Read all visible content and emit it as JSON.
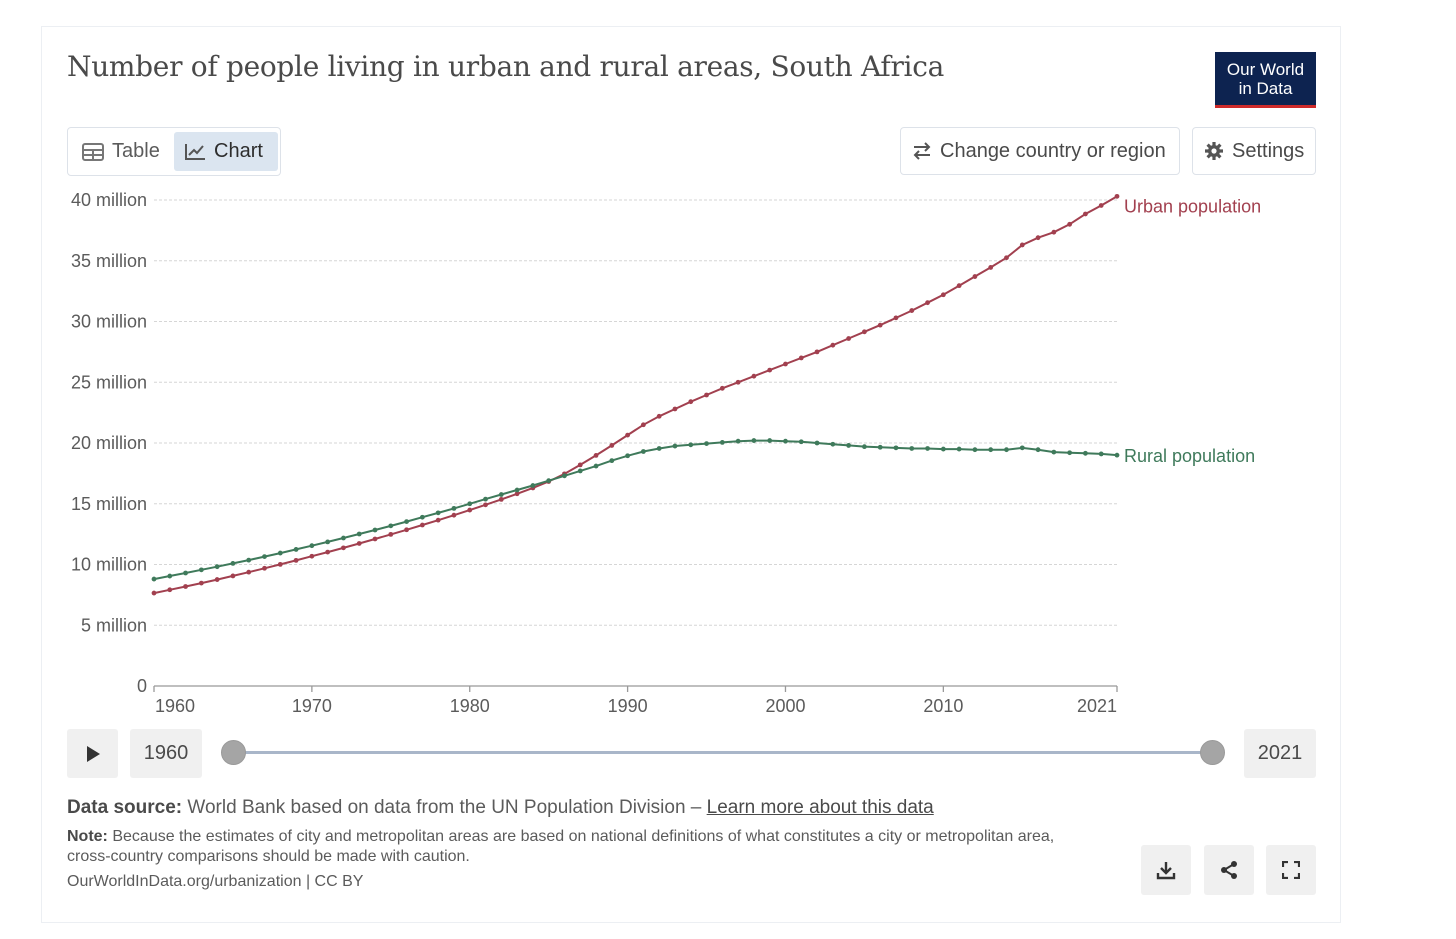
{
  "header": {
    "title": "Number of people living in urban and rural areas, South Africa",
    "logo_line1": "Our World",
    "logo_line2": "in Data"
  },
  "tabs": [
    {
      "label": "Table",
      "icon": "table-icon",
      "active": false
    },
    {
      "label": "Chart",
      "icon": "line-chart-icon",
      "active": true
    }
  ],
  "controls": {
    "change_region_label": "Change country or region",
    "settings_label": "Settings"
  },
  "timeline": {
    "start_label": "1960",
    "end_label": "2021",
    "start_value": 1960,
    "end_value": 2021
  },
  "footer": {
    "source_prefix": "Data source:",
    "source_text": "World Bank based on data from the UN Population Division –",
    "source_link": "Learn more about this data",
    "note_prefix": "Note:",
    "note_text": "Because the estimates of city and metropolitan areas are based on national definitions of what constitutes a city or metropolitan area, cross-country comparisons should be made with caution.",
    "credit": "OurWorldInData.org/urbanization | CC BY"
  },
  "chart_data": {
    "type": "line",
    "title": "Number of people living in urban and rural areas, South Africa",
    "xlabel": "",
    "ylabel": "",
    "xlim": [
      1960,
      2021
    ],
    "ylim": [
      0,
      40000000
    ],
    "grid": true,
    "legend": "inline-right",
    "x_ticks": [
      {
        "value": 1960,
        "label": "1960"
      },
      {
        "value": 1970,
        "label": "1970"
      },
      {
        "value": 1980,
        "label": "1980"
      },
      {
        "value": 1990,
        "label": "1990"
      },
      {
        "value": 2000,
        "label": "2000"
      },
      {
        "value": 2010,
        "label": "2010"
      },
      {
        "value": 2021,
        "label": "2021"
      }
    ],
    "y_ticks": [
      {
        "value": 0,
        "label": "0"
      },
      {
        "value": 5000000,
        "label": "5 million"
      },
      {
        "value": 10000000,
        "label": "10 million"
      },
      {
        "value": 15000000,
        "label": "15 million"
      },
      {
        "value": 20000000,
        "label": "20 million"
      },
      {
        "value": 25000000,
        "label": "25 million"
      },
      {
        "value": 30000000,
        "label": "30 million"
      },
      {
        "value": 35000000,
        "label": "35 million"
      },
      {
        "value": 40000000,
        "label": "40 million"
      }
    ],
    "x": [
      1960,
      1961,
      1962,
      1963,
      1964,
      1965,
      1966,
      1967,
      1968,
      1969,
      1970,
      1971,
      1972,
      1973,
      1974,
      1975,
      1976,
      1977,
      1978,
      1979,
      1980,
      1981,
      1982,
      1983,
      1984,
      1985,
      1986,
      1987,
      1988,
      1989,
      1990,
      1991,
      1992,
      1993,
      1994,
      1995,
      1996,
      1997,
      1998,
      1999,
      2000,
      2001,
      2002,
      2003,
      2004,
      2005,
      2006,
      2007,
      2008,
      2009,
      2010,
      2011,
      2012,
      2013,
      2014,
      2015,
      2016,
      2017,
      2018,
      2019,
      2020,
      2021
    ],
    "series": [
      {
        "name": "Urban population",
        "color": "#a2404f",
        "values": [
          7650000,
          7920000,
          8190000,
          8470000,
          8760000,
          9060000,
          9370000,
          9690000,
          10010000,
          10340000,
          10680000,
          11020000,
          11370000,
          11730000,
          12100000,
          12480000,
          12860000,
          13250000,
          13650000,
          14060000,
          14480000,
          14910000,
          15360000,
          15820000,
          16300000,
          16830000,
          17460000,
          18200000,
          18980000,
          19800000,
          20650000,
          21500000,
          22200000,
          22800000,
          23400000,
          23950000,
          24500000,
          25000000,
          25500000,
          26000000,
          26500000,
          27000000,
          27500000,
          28050000,
          28600000,
          29150000,
          29700000,
          30300000,
          30900000,
          31550000,
          32200000,
          32950000,
          33700000,
          34450000,
          35250000,
          36300000,
          36900000,
          37350000,
          38000000,
          38850000,
          39550000,
          40300000
        ]
      },
      {
        "name": "Rural population",
        "color": "#3f7a5b",
        "values": [
          8800000,
          9050000,
          9300000,
          9560000,
          9820000,
          10090000,
          10360000,
          10650000,
          10940000,
          11240000,
          11550000,
          11860000,
          12180000,
          12510000,
          12840000,
          13180000,
          13530000,
          13890000,
          14250000,
          14620000,
          15000000,
          15380000,
          15760000,
          16130000,
          16500000,
          16900000,
          17300000,
          17700000,
          18100000,
          18550000,
          18950000,
          19300000,
          19550000,
          19750000,
          19850000,
          19950000,
          20050000,
          20150000,
          20200000,
          20200000,
          20150000,
          20100000,
          20000000,
          19900000,
          19800000,
          19700000,
          19650000,
          19600000,
          19550000,
          19550000,
          19500000,
          19500000,
          19450000,
          19450000,
          19450000,
          19600000,
          19450000,
          19250000,
          19200000,
          19150000,
          19100000,
          19000000
        ]
      }
    ]
  }
}
